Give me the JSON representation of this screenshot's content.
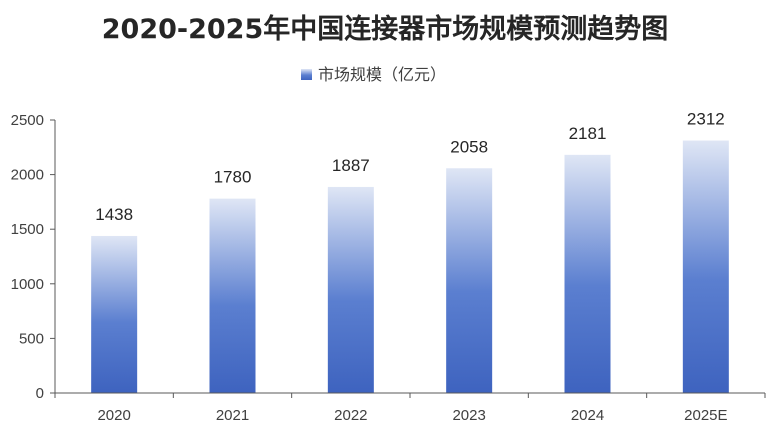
{
  "chart_data": {
    "type": "bar",
    "title": "2020-2025年中国连接器市场规模预测趋势图",
    "categories": [
      "2020",
      "2021",
      "2022",
      "2023",
      "2024",
      "2025E"
    ],
    "series": [
      {
        "name": "市场规模（亿元）",
        "values": [
          1438,
          1780,
          1887,
          2058,
          2181,
          2312
        ]
      }
    ],
    "data_labels": [
      "1438",
      "1780",
      "1887",
      "2058",
      "2181",
      "2312"
    ],
    "y_ticks": [
      "0",
      "500",
      "1000",
      "1500",
      "2000",
      "2500"
    ],
    "ylim": [
      0,
      2500
    ],
    "xlabel": "",
    "ylabel": "",
    "legend_position": "top-center",
    "grid": false,
    "colors": {
      "bar_top": "#dfe6f5",
      "bar_mid": "#5b7fd0",
      "bar_bottom": "#3e63bf",
      "axis": "#595959"
    }
  }
}
